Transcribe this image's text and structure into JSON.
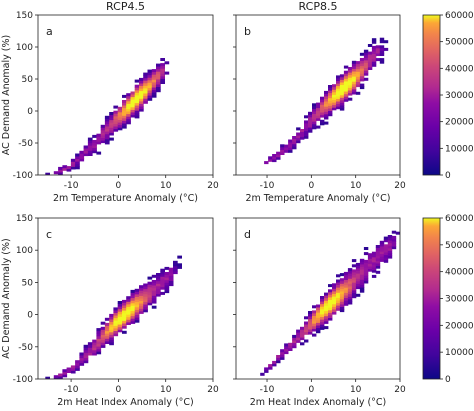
{
  "chart_data": [
    {
      "type": "heatmap",
      "panel": "a",
      "title": "RCP4.5",
      "xlabel": "2m Temperature Anomaly (°C)",
      "ylabel": "AC Demand Anomaly (%)",
      "xlim": [
        -17,
        20
      ],
      "ylim": [
        -100,
        150
      ],
      "xticks": [
        -10,
        0,
        10,
        20
      ],
      "yticks": [
        -100,
        -50,
        0,
        50,
        100,
        150
      ],
      "cloud": {
        "ridge": [
          [
            -14,
            -100
          ],
          [
            -10,
            -85
          ],
          [
            -5,
            -50
          ],
          [
            0,
            -12
          ],
          [
            5,
            28
          ],
          [
            10,
            70
          ]
        ],
        "width": [
          4,
          6,
          13,
          16,
          18,
          14
        ],
        "peak": [
          3,
          22
        ],
        "x_extent": [
          -15,
          11
        ]
      },
      "colorbar": {
        "vmin": 0,
        "vmax": 60000,
        "ticks": [
          0,
          10000,
          20000,
          30000,
          40000,
          50000,
          60000
        ]
      }
    },
    {
      "type": "heatmap",
      "panel": "b",
      "title": "RCP8.5",
      "xlabel": "2m Temperature Anomaly (°C)",
      "ylabel": "",
      "xlim": [
        -17,
        20
      ],
      "ylim": [
        -100,
        150
      ],
      "xticks": [
        -10,
        0,
        10,
        20
      ],
      "yticks": [
        -100,
        -50,
        0,
        50,
        100,
        150
      ],
      "cloud": {
        "ridge": [
          [
            -11,
            -85
          ],
          [
            -5,
            -55
          ],
          [
            0,
            -15
          ],
          [
            5,
            20
          ],
          [
            10,
            55
          ],
          [
            15,
            95
          ]
        ],
        "width": [
          4,
          8,
          14,
          18,
          20,
          14
        ],
        "peak": [
          7,
          38
        ],
        "x_extent": [
          -12,
          17
        ]
      },
      "colorbar": {
        "vmin": 0,
        "vmax": 60000,
        "ticks": [
          0,
          10000,
          20000,
          30000,
          40000,
          50000,
          60000
        ]
      }
    },
    {
      "type": "heatmap",
      "panel": "c",
      "title": "",
      "xlabel": "2m Heat Index Anomaly (°C)",
      "ylabel": "AC Demand Anomaly (%)",
      "xlim": [
        -17,
        20
      ],
      "ylim": [
        -100,
        150
      ],
      "xticks": [
        -10,
        0,
        10,
        20
      ],
      "yticks": [
        -100,
        -50,
        0,
        50,
        100,
        150
      ],
      "cloud": {
        "ridge": [
          [
            -14,
            -100
          ],
          [
            -10,
            -85
          ],
          [
            -5,
            -50
          ],
          [
            0,
            -10
          ],
          [
            5,
            25
          ],
          [
            12,
            68
          ]
        ],
        "width": [
          4,
          6,
          14,
          18,
          20,
          14
        ],
        "peak": [
          0,
          2
        ],
        "x_extent": [
          -15,
          13
        ]
      },
      "colorbar": {
        "vmin": 0,
        "vmax": 60000,
        "ticks": [
          0,
          10000,
          20000,
          30000,
          40000,
          50000,
          60000
        ]
      }
    },
    {
      "type": "heatmap",
      "panel": "d",
      "title": "",
      "xlabel": "2m Heat Index Anomaly (°C)",
      "ylabel": "",
      "xlim": [
        -17,
        20
      ],
      "ylim": [
        -100,
        150
      ],
      "xticks": [
        -10,
        0,
        10,
        20
      ],
      "yticks": [
        -100,
        -50,
        0,
        50,
        100,
        150
      ],
      "cloud": {
        "ridge": [
          [
            -11,
            -90
          ],
          [
            -5,
            -50
          ],
          [
            0,
            -15
          ],
          [
            5,
            22
          ],
          [
            10,
            58
          ],
          [
            15,
            90
          ],
          [
            20,
            120
          ]
        ],
        "width": [
          4,
          8,
          15,
          20,
          22,
          20,
          16
        ],
        "peak": [
          3,
          20
        ],
        "x_extent": [
          -12,
          20
        ]
      },
      "colorbar": {
        "vmin": 0,
        "vmax": 60000,
        "ticks": [
          0,
          10000,
          20000,
          30000,
          40000,
          50000,
          60000
        ]
      }
    }
  ]
}
